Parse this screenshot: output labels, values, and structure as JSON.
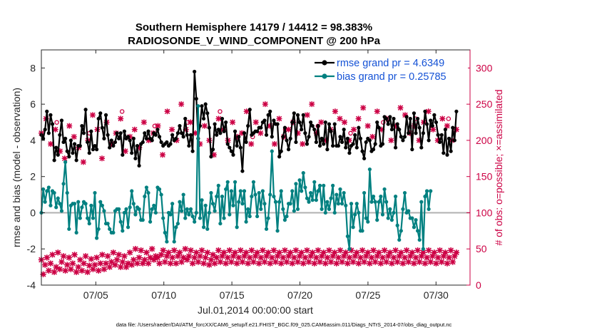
{
  "chart_data": {
    "type": "line",
    "title_line1": "Southern Hemisphere 14179 / 14412 = 98.383%",
    "title_line2": "RADIOSONDE_V_WIND_COMPONENT @ 200 hPa",
    "xlabel": "Jul.01,2014 00:00:00 start",
    "ylabel_left": "rmse and bias (model - observation)",
    "ylabel_right": "# of obs: o=possible; ×=assimilated",
    "footnote": "data file: /Users/raeder/DAI/ATM_forcXX/CAM6_setup/f.e21.FHIST_BGC.f09_025.CAM6assim.011/Diags_NTrS_2014-07/obs_diag_output.nc",
    "xlim": [
      1,
      32.5
    ],
    "ylim_left": [
      -4,
      9
    ],
    "ylim_right": [
      0,
      325
    ],
    "x_ticks": [
      5,
      10,
      15,
      20,
      25,
      30
    ],
    "x_tick_labels": [
      "07/05",
      "07/10",
      "07/15",
      "07/20",
      "07/25",
      "07/30"
    ],
    "y_ticks_left": [
      -4,
      -2,
      0,
      2,
      4,
      6,
      8
    ],
    "y_tick_labels_left": [
      "-4",
      "-2",
      "0",
      "2",
      "4",
      "6",
      "8"
    ],
    "y_ticks_right": [
      0,
      50,
      100,
      150,
      200,
      250,
      300
    ],
    "y_tick_labels_right": [
      "0",
      "50",
      "100",
      "150",
      "200",
      "250",
      "300"
    ],
    "zero_line": 0,
    "legend_position": "top-right",
    "legend": [
      "rmse grand pr = 4.6349",
      "bias grand pr = 0.25785"
    ],
    "colors": {
      "rmse": "#000000",
      "bias": "#008080",
      "obs": "#cc0044",
      "legend_text": "#1452d6",
      "zero_line": "#b0b0b0"
    },
    "rmse": [
      4.3,
      4.1,
      4.6,
      5.6,
      4.4,
      5.4,
      4.9,
      2.9,
      3.6,
      3.2,
      4.3,
      5.1,
      3.9,
      4.1,
      3.4,
      3.1,
      4.0,
      3.3,
      3.8,
      2.9,
      3.7,
      3.7,
      4.8,
      4.4,
      5.7,
      3.9,
      3.3,
      4.5,
      3.5,
      3.7,
      3.5,
      5.2,
      5.5,
      4.7,
      4.1,
      5.4,
      4.3,
      3.6,
      4.0,
      3.7,
      3.9,
      4.4,
      4.1,
      4.4,
      3.2,
      4.5,
      4.1,
      4.2,
      4.0,
      3.3,
      4.1,
      3.0,
      3.7,
      2.6,
      3.8,
      3.9,
      4.4,
      4.1,
      4.5,
      4.1,
      4.0,
      4.4,
      4.3,
      4.6,
      4.2,
      3.9,
      3.7,
      3.8,
      3.9,
      3.7,
      3.8,
      4.3,
      4.0,
      4.1,
      4.4,
      4.8,
      4.4,
      4.2,
      5.2,
      4.3,
      3.7,
      4.3,
      3.4,
      7.8,
      6.3,
      4.1,
      4.8,
      5.9,
      5.2,
      6.0,
      5.5,
      4.7,
      3.1,
      3.5,
      4.9,
      4.3,
      4.6,
      4.4,
      5.2,
      4.5,
      5.0,
      3.8,
      3.6,
      3.4,
      3.2,
      4.5,
      3.7,
      4.2,
      3.6,
      2.3,
      4.4,
      3.9,
      4.8,
      5.7,
      4.3,
      4.4,
      4.5,
      4.5,
      4.7,
      4.7,
      5.0,
      5.1,
      4.3,
      5.4,
      5.6,
      4.2,
      5.1,
      4.9,
      4.9,
      3.1,
      3.4,
      4.2,
      4.7,
      4.0,
      3.5,
      4.1,
      5.0,
      5.5,
      3.9,
      5.4,
      5.0,
      4.6,
      5.4,
      4.4,
      3.8,
      4.2,
      5.0,
      4.8,
      4.6,
      3.9,
      4.8,
      3.7,
      4.1,
      3.8,
      5.0,
      3.5,
      4.9,
      4.5,
      3.7,
      4.9,
      3.7,
      3.7,
      4.2,
      3.9,
      4.6,
      3.6,
      4.1,
      3.3,
      3.7,
      3.8,
      4.3,
      3.6,
      4.7,
      4.1,
      3.4,
      3.0,
      3.9,
      4.1,
      4.0,
      3.4,
      3.5,
      3.8,
      5.0,
      4.7,
      3.7,
      3.8,
      5.3,
      5.2,
      4.9,
      5.3,
      4.6,
      5.2,
      3.6,
      4.9,
      4.6,
      4.2,
      4.0,
      4.2,
      5.3,
      4.4,
      5.2,
      3.5,
      5.5,
      4.4,
      5.2,
      4.7,
      3.6,
      4.4,
      5.6,
      4.9,
      4.0,
      5.1,
      4.8,
      5.4,
      5.0,
      4.3,
      3.9,
      4.3,
      3.3,
      4.6,
      3.2,
      4.1,
      3.4,
      4.7,
      4.0,
      5.6
    ],
    "bias": [
      0.0,
      1.3,
      0.6,
      1.2,
      1.4,
      0.4,
      1.2,
      1.1,
      0.3,
      0.8,
      0.5,
      0.1,
      1.6,
      2.8,
      1.1,
      -0.9,
      0.4,
      0.5,
      0.5,
      -1.1,
      0.6,
      -0.3,
      0.3,
      0.6,
      0.5,
      -0.3,
      -0.6,
      0.4,
      -0.3,
      1.1,
      -1.4,
      -0.9,
      0.6,
      0.4,
      0.1,
      -0.6,
      -0.6,
      -0.9,
      -1.1,
      -1.1,
      0.1,
      0.2,
      0.2,
      -0.5,
      -1.0,
      0.0,
      0.2,
      -0.8,
      0.3,
      1.2,
      0.5,
      -0.1,
      0.3,
      0.2,
      -0.4,
      -0.4,
      0.9,
      1.4,
      1.1,
      -0.5,
      0.2,
      0.4,
      0.0,
      1.4,
      1.3,
      1.0,
      -0.3,
      -1.1,
      -1.6,
      0.0,
      -0.1,
      0.5,
      -1.6,
      -0.8,
      -0.6,
      0.6,
      0.1,
      1.0,
      -0.3,
      0.2,
      -0.1,
      0.2,
      -0.2,
      -0.5,
      0.0,
      5.9,
      -0.3,
      0.7,
      -0.8,
      0.4,
      -0.9,
      0.0,
      1.1,
      0.5,
      0.1,
      0.9,
      1.5,
      -0.6,
      0.9,
      -0.3,
      1.3,
      1.7,
      -0.1,
      1.2,
      0.4,
      1.7,
      -0.8,
      0.6,
      1.2,
      0.5,
      1.2,
      -0.5,
      0.2,
      -0.2,
      0.9,
      1.7,
      1.0,
      -0.2,
      1.1,
      0.2,
      1.2,
      0.5,
      -0.9,
      -0.3,
      1.0,
      3.4,
      0.9,
      0.6,
      -1.0,
      0.6,
      1.2,
      0.2,
      -0.4,
      -0.2,
      0.5,
      0.5,
      1.2,
      0.1,
      1.6,
      0.2,
      1.8,
      1.2,
      2.2,
      1.4,
      0.8,
      0.6,
      1.1,
      0.7,
      1.7,
      0.7,
      1.2,
      1.5,
      0.2,
      1.5,
      0.0,
      0.6,
      0.2,
      0.8,
      1.5,
      0.0,
      1.0,
      0.5,
      1.3,
      0.5,
      1.1,
      0.4,
      -1.3,
      -2.0,
      0.5,
      -0.8,
      -0.1,
      0.5,
      0.0,
      -1.0,
      -1.0,
      1.1,
      -0.3,
      -0.5,
      2.4,
      0.6,
      0.9,
      0.6,
      -0.4,
      0.6,
      0.9,
      -0.1,
      1.3,
      0.6,
      -0.3,
      0.2,
      -0.4,
      0.0,
      0.9,
      -0.7,
      -1.5,
      -1.0,
      0.2,
      1.1,
      0.0,
      0.1,
      -0.3,
      -0.3,
      -0.8,
      -0.4,
      -1.0,
      -1.5,
      0.6,
      -2.0,
      0.9,
      1.2,
      0.2,
      1.2
    ],
    "obs_possible": [
      35,
      15,
      28,
      38,
      20,
      30,
      42,
      18,
      25,
      45,
      22,
      32,
      40,
      20,
      28,
      38,
      22,
      30,
      42,
      18,
      25,
      35,
      20,
      30,
      40,
      18,
      27,
      36,
      22,
      28,
      38,
      20,
      30,
      42,
      22,
      30,
      40,
      25,
      32,
      45,
      28,
      35,
      42,
      25,
      32,
      40,
      25,
      30,
      45,
      28,
      35,
      50,
      30,
      38,
      48,
      30,
      35,
      45,
      30,
      38,
      50,
      35,
      40,
      38,
      30,
      42,
      48,
      32,
      40,
      45,
      30,
      38,
      48,
      30,
      40,
      45,
      32,
      38,
      50,
      35,
      40,
      48,
      30,
      38,
      45,
      32,
      40,
      48,
      30,
      38,
      45,
      28,
      35,
      42,
      30,
      38,
      48,
      32,
      40,
      45,
      30,
      38,
      48,
      32,
      40,
      45,
      30,
      38,
      48,
      32,
      40,
      45,
      30,
      38,
      48,
      32,
      40,
      45,
      30,
      38,
      48,
      32,
      40,
      45,
      30,
      38,
      48,
      32,
      40,
      45,
      30,
      38,
      48,
      32,
      40,
      45,
      30,
      38,
      48,
      32,
      40,
      45,
      30,
      38,
      48,
      32,
      40,
      45,
      30,
      38,
      48,
      32,
      40,
      45,
      30,
      38,
      48,
      32,
      40,
      45,
      30,
      38,
      48,
      32,
      40,
      45,
      30,
      38,
      48,
      32,
      40,
      45,
      30,
      38,
      48,
      32,
      40,
      45,
      30,
      38,
      48,
      32,
      40,
      45,
      30,
      38,
      48,
      32,
      40,
      45,
      30,
      38,
      48,
      32,
      40,
      45,
      30,
      38,
      48,
      32,
      40,
      45,
      30,
      38,
      48,
      32,
      40,
      45,
      30,
      38,
      48,
      32,
      40,
      45,
      30,
      38,
      48,
      32,
      40,
      45,
      30,
      38,
      48,
      32,
      40,
      45,
      30,
      38,
      48,
      32,
      40,
      45,
      30,
      38,
      48,
      32,
      40,
      45,
      30,
      38,
      48,
      32,
      40,
      45,
      30,
      38,
      48,
      32,
      40,
      45,
      30,
      38,
      48,
      32,
      40,
      45,
      30,
      38,
      48,
      32,
      40,
      45,
      30,
      38,
      48,
      32,
      40,
      45,
      30,
      38,
      48,
      32,
      40,
      45,
      30,
      38,
      48,
      32,
      40,
      45,
      30,
      38,
      48,
      32,
      40,
      45,
      30,
      38,
      48,
      32,
      40,
      45,
      30,
      38,
      48,
      32,
      40,
      45,
      30,
      38,
      48,
      32,
      40,
      45,
      30,
      38,
      48,
      32,
      40,
      45,
      30,
      38,
      48,
      32,
      40,
      45,
      30,
      38,
      48,
      32,
      40,
      45,
      30,
      38,
      48,
      32,
      40,
      45
    ],
    "obs_upper": [
      210,
      230,
      195,
      215,
      185,
      175,
      220,
      205,
      190,
      170,
      200,
      235,
      215,
      175,
      225,
      195,
      210,
      230,
      185,
      205,
      215,
      190,
      225,
      200,
      210,
      220,
      180,
      240,
      215,
      200,
      250,
      215,
      225,
      210,
      195,
      220,
      200,
      180,
      230,
      215,
      200,
      225,
      205,
      210,
      240,
      195,
      225,
      210,
      250,
      220,
      195,
      230,
      205,
      215,
      225,
      210,
      195,
      235,
      250,
      210,
      225,
      200,
      215,
      240,
      230,
      225,
      200,
      215,
      230,
      245,
      220,
      205,
      240,
      215,
      230,
      200,
      220,
      245,
      235,
      210,
      220,
      200,
      225,
      240,
      215,
      200,
      230,
      220,
      200,
      215
    ]
  }
}
